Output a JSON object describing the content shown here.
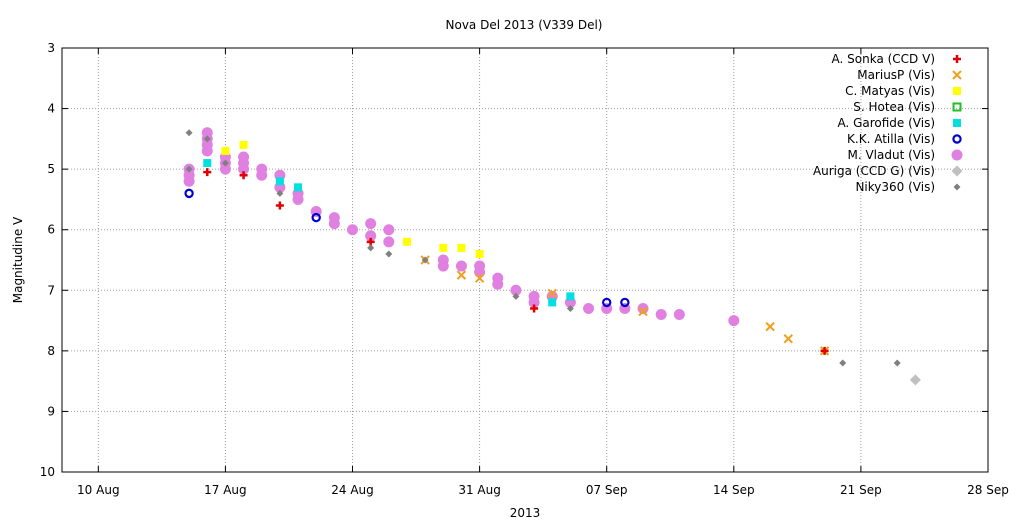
{
  "chart_data": {
    "type": "scatter",
    "title": "Nova Del 2013 (V339 Del)",
    "xlabel": "2013",
    "ylabel": "Magnitudine V",
    "x_unit": "day of 2013 (Aug 1 = 1)",
    "xlim": [
      8,
      59
    ],
    "ylim": [
      10,
      3
    ],
    "y_inverted": true,
    "grid": true,
    "legend_position": "top-right",
    "x_ticks": [
      {
        "x": 10,
        "label": "10 Aug"
      },
      {
        "x": 17,
        "label": "17 Aug"
      },
      {
        "x": 24,
        "label": "24 Aug"
      },
      {
        "x": 31,
        "label": "31 Aug"
      },
      {
        "x": 38,
        "label": "07 Sep"
      },
      {
        "x": 45,
        "label": "14 Sep"
      },
      {
        "x": 52,
        "label": "21 Sep"
      },
      {
        "x": 59,
        "label": "28 Sep"
      }
    ],
    "y_ticks": [
      3,
      4,
      5,
      6,
      7,
      8,
      9,
      10
    ],
    "series": [
      {
        "name": "A. Sonka (CCD V)",
        "marker": "plus",
        "color": "#e00000",
        "points": [
          [
            16,
            5.05
          ],
          [
            18,
            5.1
          ],
          [
            20,
            5.6
          ],
          [
            25,
            6.2
          ],
          [
            34,
            7.3
          ],
          [
            50,
            8.0
          ]
        ]
      },
      {
        "name": "MariusP (Vis)",
        "marker": "x",
        "color": "#f0a020",
        "points": [
          [
            28,
            6.5
          ],
          [
            30,
            6.75
          ],
          [
            31,
            6.8
          ],
          [
            35,
            7.05
          ],
          [
            40,
            7.35
          ],
          [
            47,
            7.6
          ],
          [
            48,
            7.8
          ],
          [
            50,
            8.0
          ]
        ]
      },
      {
        "name": "C. Matyas (Vis)",
        "marker": "square",
        "color": "#ffff00",
        "points": [
          [
            17,
            4.7
          ],
          [
            18,
            4.6
          ],
          [
            27,
            6.2
          ],
          [
            29,
            6.3
          ],
          [
            30,
            6.3
          ],
          [
            31,
            6.4
          ]
        ]
      },
      {
        "name": "S. Hotea (Vis)",
        "marker": "square-open",
        "color": "#20c020",
        "points": []
      },
      {
        "name": "A. Garofide (Vis)",
        "marker": "square",
        "color": "#00e0e0",
        "points": [
          [
            16,
            4.9
          ],
          [
            20,
            5.2
          ],
          [
            21,
            5.3
          ],
          [
            35,
            7.2
          ],
          [
            36,
            7.1
          ]
        ]
      },
      {
        "name": "K.K. Atilla (Vis)",
        "marker": "circle-open",
        "color": "#0000d0",
        "points": [
          [
            15,
            5.4
          ],
          [
            22,
            5.8
          ],
          [
            38,
            7.2
          ],
          [
            39,
            7.2
          ]
        ]
      },
      {
        "name": "M. Vladut (Vis)",
        "marker": "circle",
        "color": "#e080e0",
        "points": [
          [
            15,
            5.0
          ],
          [
            15,
            5.1
          ],
          [
            15,
            5.2
          ],
          [
            16,
            4.4
          ],
          [
            16,
            4.5
          ],
          [
            16,
            4.6
          ],
          [
            16,
            4.7
          ],
          [
            17,
            4.8
          ],
          [
            17,
            4.9
          ],
          [
            17,
            5.0
          ],
          [
            18,
            4.8
          ],
          [
            18,
            4.9
          ],
          [
            18,
            5.0
          ],
          [
            19,
            5.0
          ],
          [
            19,
            5.1
          ],
          [
            20,
            5.1
          ],
          [
            20,
            5.3
          ],
          [
            21,
            5.4
          ],
          [
            21,
            5.5
          ],
          [
            22,
            5.7
          ],
          [
            23,
            5.8
          ],
          [
            23,
            5.9
          ],
          [
            24,
            6.0
          ],
          [
            25,
            5.9
          ],
          [
            25,
            6.1
          ],
          [
            26,
            6.0
          ],
          [
            26,
            6.2
          ],
          [
            29,
            6.5
          ],
          [
            29,
            6.6
          ],
          [
            30,
            6.6
          ],
          [
            31,
            6.6
          ],
          [
            31,
            6.7
          ],
          [
            32,
            6.8
          ],
          [
            32,
            6.9
          ],
          [
            33,
            7.0
          ],
          [
            34,
            7.1
          ],
          [
            34,
            7.2
          ],
          [
            35,
            7.1
          ],
          [
            36,
            7.2
          ],
          [
            37,
            7.3
          ],
          [
            38,
            7.3
          ],
          [
            39,
            7.3
          ],
          [
            40,
            7.3
          ],
          [
            41,
            7.4
          ],
          [
            42,
            7.4
          ],
          [
            45,
            7.5
          ]
        ]
      },
      {
        "name": "Auriga (CCD G) (Vis)",
        "marker": "diamond",
        "color": "#c0c0c0",
        "points": [
          [
            55,
            8.48
          ]
        ]
      },
      {
        "name": "Niky360 (Vis)",
        "marker": "diamond-small",
        "color": "#808080",
        "points": [
          [
            15,
            4.4
          ],
          [
            15,
            5.0
          ],
          [
            16,
            4.5
          ],
          [
            17,
            4.9
          ],
          [
            20,
            5.4
          ],
          [
            25,
            6.3
          ],
          [
            26,
            6.4
          ],
          [
            28,
            6.5
          ],
          [
            33,
            7.1
          ],
          [
            36,
            7.3
          ],
          [
            51,
            8.2
          ],
          [
            54,
            8.2
          ]
        ]
      }
    ]
  }
}
